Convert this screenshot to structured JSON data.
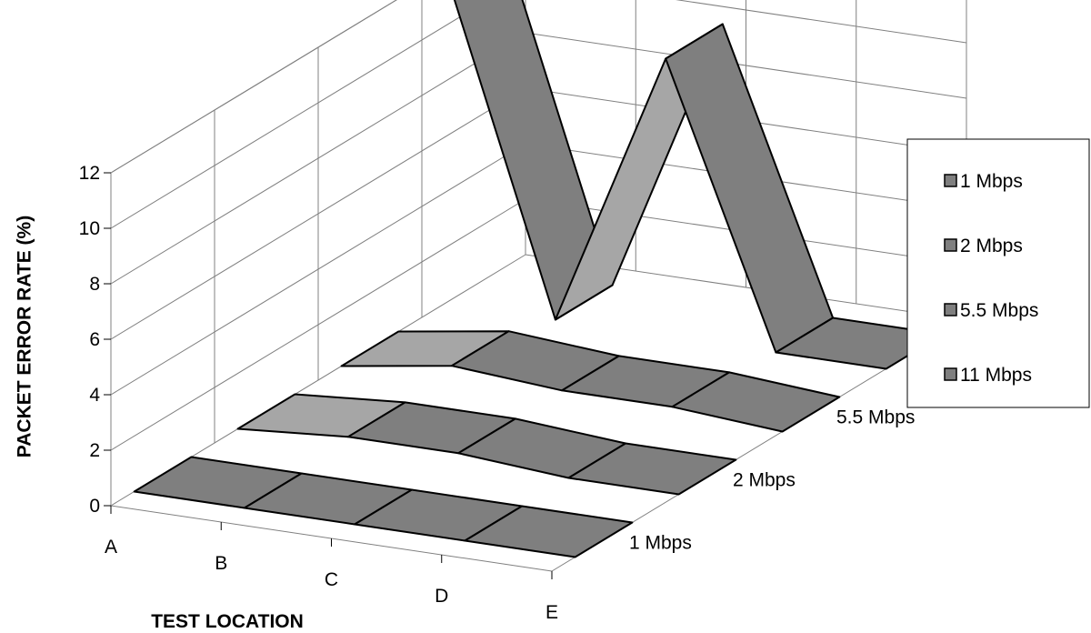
{
  "chart_data": {
    "type": "3d-line",
    "categories": [
      "A",
      "B",
      "C",
      "D",
      "E"
    ],
    "series": [
      {
        "name": "1 Mbps",
        "values": [
          0,
          0,
          0,
          0,
          0
        ]
      },
      {
        "name": "2 Mbps",
        "values": [
          0,
          0.3,
          0.3,
          0,
          0
        ]
      },
      {
        "name": "5.5 Mbps",
        "values": [
          0,
          0.6,
          0.3,
          0.3,
          0
        ]
      },
      {
        "name": "11 Mbps",
        "values": [
          12,
          0,
          10,
          0,
          0
        ]
      }
    ],
    "xlabel": "TEST LOCATION",
    "ylabel": "PACKET ERROR RATE (%)",
    "ylim": [
      0,
      12
    ],
    "yticks": [
      0,
      2,
      4,
      6,
      8,
      10,
      12
    ],
    "grid": true,
    "legend_position": "right",
    "colors": {
      "ribbon": "#7f7f7f",
      "ribbon_side": "#a6a6a6",
      "edge": "#000000",
      "grid": "#808080"
    }
  }
}
